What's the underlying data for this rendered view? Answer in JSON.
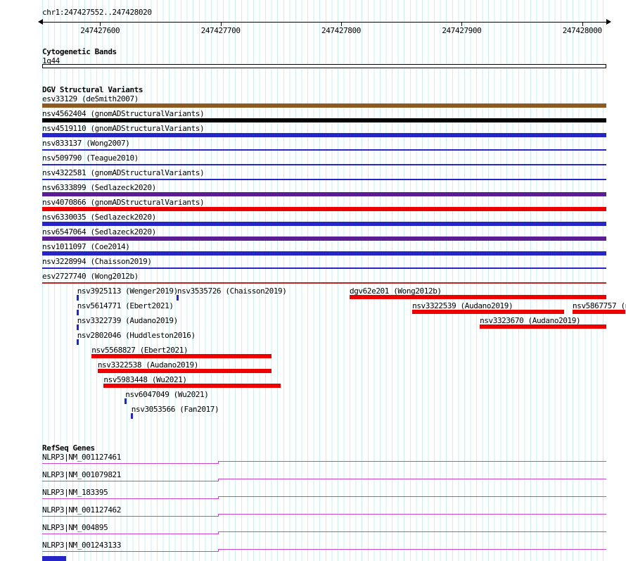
{
  "header": {
    "region_label": "chr1:247427552..247428020"
  },
  "sections": {
    "cytobands_title": "Cytogenetic Bands",
    "dgv_title": "DGV Structural Variants",
    "genes_title": "RefSeq Genes"
  },
  "chart_data": {
    "type": "genome-browser-tracks",
    "region": {
      "chrom": "chr1",
      "start": 247427552,
      "end": 247428020
    },
    "axis": {
      "tick_positions": [
        247427600,
        247427700,
        247427800,
        247427900,
        247428000
      ],
      "tick_labels": [
        "247427600",
        "247427700",
        "247427800",
        "247427900",
        "247428000"
      ]
    },
    "cytoband": {
      "name": "1q44"
    },
    "variants_full_span": [
      {
        "label": "esv33129 (deSmith2007)",
        "color": "#8d5a22",
        "style": "thick"
      },
      {
        "label": "nsv4562404 (gnomADStructuralVariants)",
        "color": "#000000",
        "style": "thick"
      },
      {
        "label": "nsv4519110 (gnomADStructuralVariants)",
        "color": "#2525c8",
        "style": "thick"
      },
      {
        "label": "nsv833137 (Wong2007)",
        "color": "#2525c8",
        "style": "thin"
      },
      {
        "label": "nsv509790 (Teague2010)",
        "color": "#2525c8",
        "style": "thin"
      },
      {
        "label": "nsv4322581 (gnomADStructuralVariants)",
        "color": "#2525c8",
        "style": "thin"
      },
      {
        "label": "nsv6333899 (Sedlazeck2020)",
        "color": "#5a1d96",
        "style": "thick"
      },
      {
        "label": "nsv4070866 (gnomADStructuralVariants)",
        "color": "#ee0000",
        "style": "thick"
      },
      {
        "label": "nsv6330035 (Sedlazeck2020)",
        "color": "#2525c8",
        "style": "thick"
      },
      {
        "label": "nsv6547064 (Sedlazeck2020)",
        "color": "#5a1d96",
        "style": "thick"
      },
      {
        "label": "nsv1011097 (Coe2014)",
        "color": "#2525c8",
        "style": "thick"
      },
      {
        "label": "nsv3228994 (Chaisson2019)",
        "color": "#2525c8",
        "style": "thin"
      },
      {
        "label": "esv2727740 (Wong2012b)",
        "color": "#bb2222",
        "style": "thin"
      }
    ],
    "variants_stacked_rows": [
      [
        {
          "label": "nsv3925113 (Wenger2019)",
          "type": "point",
          "pos": 247427581,
          "color": "#2525c8"
        },
        {
          "label": "nsv3535726 (Chaisson2019)",
          "type": "point",
          "pos": 247427664,
          "color": "#2525c8"
        },
        {
          "label": "dgv62e201 (Wong2012b)",
          "type": "bar",
          "start": 247427807,
          "end": 247428020,
          "color": "#ee0000"
        }
      ],
      [
        {
          "label": "nsv5614771 (Ebert2021)",
          "type": "point",
          "pos": 247427581,
          "color": "#2525c8"
        },
        {
          "label": "nsv3322539 (Audano2019)",
          "type": "bar",
          "start": 247427859,
          "end": 247427985,
          "color": "#ee0000"
        },
        {
          "label": "nsv5867757 (n",
          "type": "bar",
          "start": 247427992,
          "end": null,
          "color": "#ee0000",
          "clipped_right": true
        }
      ],
      [
        {
          "label": "nsv3322739 (Audano2019)",
          "type": "point",
          "pos": 247427581,
          "color": "#2525c8"
        },
        {
          "label": "nsv3323670 (Audano2019)",
          "type": "bar",
          "start": 247427915,
          "end": 247428020,
          "color": "#ee0000"
        }
      ],
      [
        {
          "label": "nsv2802046 (Huddleston2016)",
          "type": "point",
          "pos": 247427581,
          "color": "#2525c8"
        }
      ],
      [
        {
          "label": "nsv5568827 (Ebert2021)",
          "type": "bar",
          "start": 247427593,
          "end": 247427742,
          "color": "#ee0000"
        }
      ],
      [
        {
          "label": "nsv3322538 (Audano2019)",
          "type": "bar",
          "start": 247427598,
          "end": 247427742,
          "color": "#ee0000"
        }
      ],
      [
        {
          "label": "nsv5983448 (Wu2021)",
          "type": "bar",
          "start": 247427603,
          "end": 247427750,
          "color": "#ee0000"
        }
      ],
      [
        {
          "label": "nsv6047049 (Wu2021)",
          "type": "point",
          "pos": 247427621,
          "color": "#2525c8"
        }
      ],
      [
        {
          "label": "nsv3053566 (Fan2017)",
          "type": "point",
          "pos": 247427626,
          "color": "#2525c8"
        }
      ]
    ],
    "genes": {
      "color": "#cc44cc",
      "exon_boundary": 247427698,
      "transcripts": [
        "NLRP3|NM_001127461",
        "NLRP3|NM_001079821",
        "NLRP3|NM_183395",
        "NLRP3|NM_001127462",
        "NLRP3|NM_004895",
        "NLRP3|NM_001243133"
      ]
    },
    "clipped_bottom_feature": {
      "color": "#2525c8",
      "start": 247427552,
      "end": 247427572
    }
  }
}
